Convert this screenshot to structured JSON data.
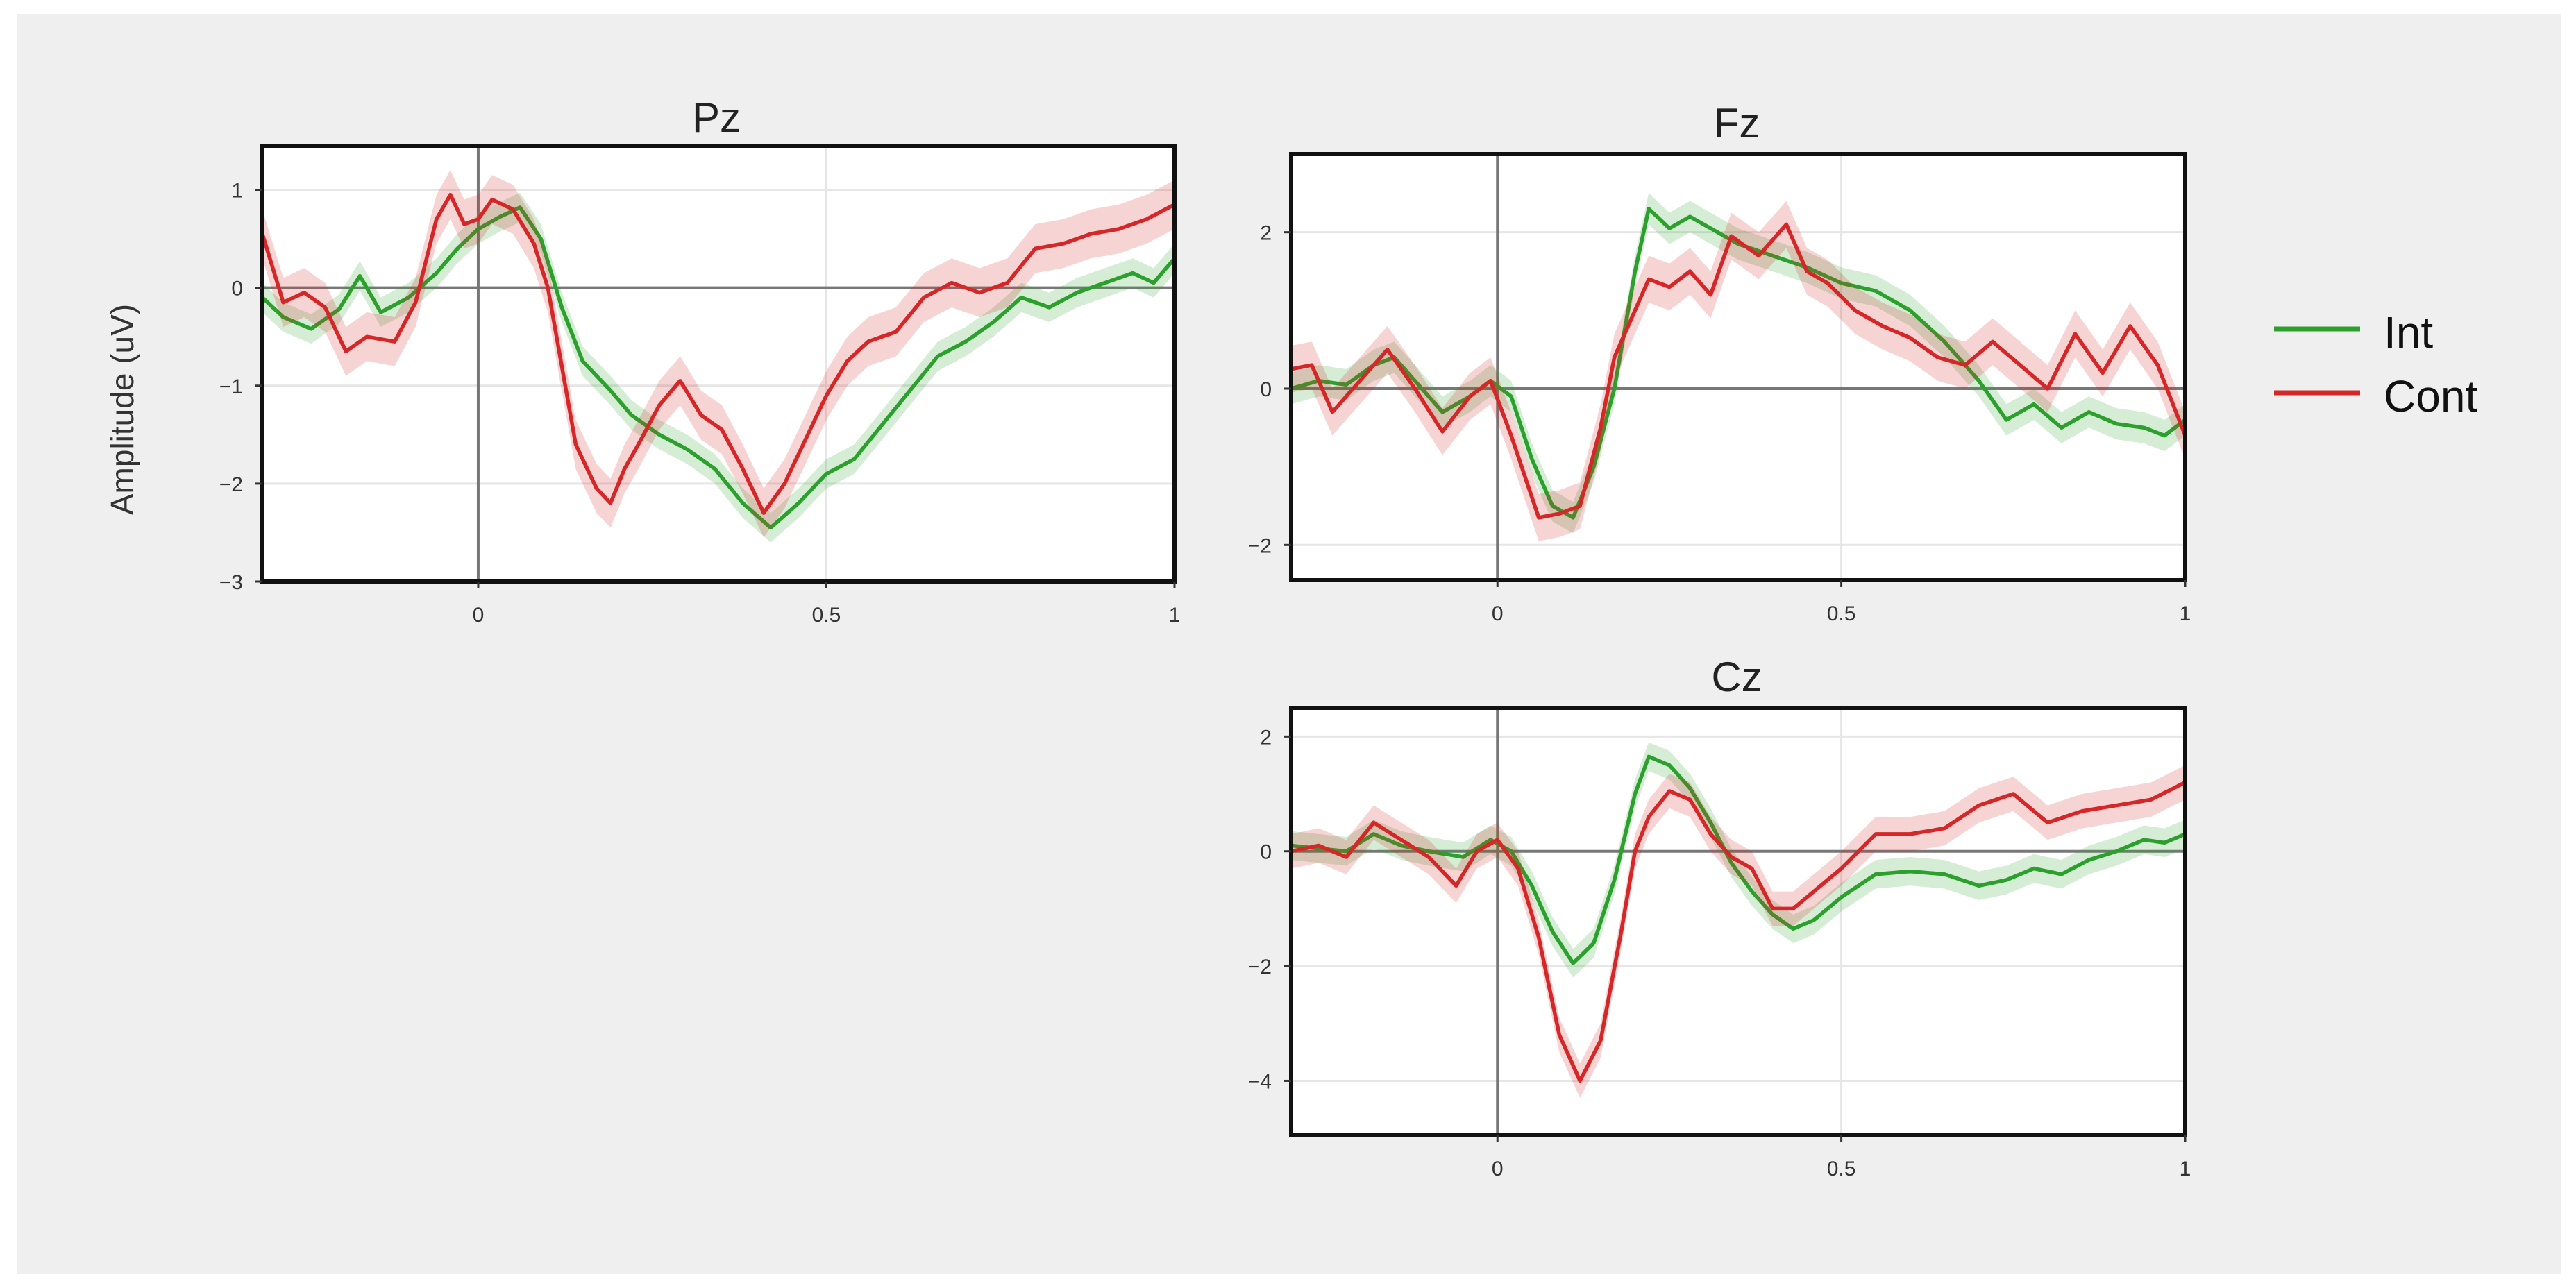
{
  "figure": {
    "ylabel": "Amplitude (uV)",
    "legend": {
      "placement": "right",
      "items": [
        {
          "name": "Int",
          "color": "#2ca02c"
        },
        {
          "name": "Cont",
          "color": "#d62728"
        }
      ]
    }
  },
  "chart_data": [
    {
      "type": "line",
      "title": "Pz",
      "ylabel": "Amplitude (uV)",
      "xlim": [
        -0.31,
        1.0
      ],
      "ylim": [
        -3.0,
        1.45
      ],
      "xticks": [
        0,
        0.5,
        1
      ],
      "xtick_labels": [
        "0",
        "0.5",
        "1"
      ],
      "yticks": [
        -3,
        -2,
        -1,
        0,
        1
      ],
      "ytick_labels": [
        "−3",
        "−2",
        "−1",
        "0",
        "1"
      ],
      "grid": true,
      "series": [
        {
          "name": "Int",
          "color": "#2ca02c",
          "band": 0.15,
          "points": [
            [
              -0.31,
              -0.1
            ],
            [
              -0.28,
              -0.3
            ],
            [
              -0.24,
              -0.42
            ],
            [
              -0.2,
              -0.22
            ],
            [
              -0.17,
              0.12
            ],
            [
              -0.14,
              -0.25
            ],
            [
              -0.1,
              -0.1
            ],
            [
              -0.06,
              0.15
            ],
            [
              -0.03,
              0.4
            ],
            [
              0.0,
              0.6
            ],
            [
              0.03,
              0.72
            ],
            [
              0.06,
              0.82
            ],
            [
              0.09,
              0.5
            ],
            [
              0.12,
              -0.2
            ],
            [
              0.15,
              -0.75
            ],
            [
              0.19,
              -1.05
            ],
            [
              0.22,
              -1.3
            ],
            [
              0.26,
              -1.5
            ],
            [
              0.3,
              -1.65
            ],
            [
              0.34,
              -1.85
            ],
            [
              0.38,
              -2.2
            ],
            [
              0.42,
              -2.45
            ],
            [
              0.46,
              -2.2
            ],
            [
              0.5,
              -1.9
            ],
            [
              0.54,
              -1.75
            ],
            [
              0.58,
              -1.4
            ],
            [
              0.62,
              -1.05
            ],
            [
              0.66,
              -0.7
            ],
            [
              0.7,
              -0.55
            ],
            [
              0.74,
              -0.35
            ],
            [
              0.78,
              -0.1
            ],
            [
              0.82,
              -0.2
            ],
            [
              0.86,
              -0.05
            ],
            [
              0.9,
              0.05
            ],
            [
              0.94,
              0.15
            ],
            [
              0.97,
              0.05
            ],
            [
              1.0,
              0.3
            ]
          ]
        },
        {
          "name": "Cont",
          "color": "#d62728",
          "band": 0.25,
          "points": [
            [
              -0.31,
              0.55
            ],
            [
              -0.28,
              -0.15
            ],
            [
              -0.25,
              -0.05
            ],
            [
              -0.22,
              -0.2
            ],
            [
              -0.19,
              -0.65
            ],
            [
              -0.16,
              -0.5
            ],
            [
              -0.12,
              -0.55
            ],
            [
              -0.09,
              -0.15
            ],
            [
              -0.06,
              0.7
            ],
            [
              -0.04,
              0.95
            ],
            [
              -0.02,
              0.65
            ],
            [
              0.0,
              0.7
            ],
            [
              0.02,
              0.9
            ],
            [
              0.05,
              0.8
            ],
            [
              0.08,
              0.45
            ],
            [
              0.1,
              0.0
            ],
            [
              0.12,
              -0.8
            ],
            [
              0.14,
              -1.6
            ],
            [
              0.17,
              -2.05
            ],
            [
              0.19,
              -2.2
            ],
            [
              0.21,
              -1.85
            ],
            [
              0.23,
              -1.6
            ],
            [
              0.26,
              -1.2
            ],
            [
              0.29,
              -0.95
            ],
            [
              0.32,
              -1.3
            ],
            [
              0.35,
              -1.45
            ],
            [
              0.38,
              -1.85
            ],
            [
              0.41,
              -2.3
            ],
            [
              0.44,
              -2.0
            ],
            [
              0.47,
              -1.55
            ],
            [
              0.5,
              -1.1
            ],
            [
              0.53,
              -0.75
            ],
            [
              0.56,
              -0.55
            ],
            [
              0.6,
              -0.45
            ],
            [
              0.64,
              -0.1
            ],
            [
              0.68,
              0.05
            ],
            [
              0.72,
              -0.05
            ],
            [
              0.76,
              0.05
            ],
            [
              0.8,
              0.4
            ],
            [
              0.84,
              0.45
            ],
            [
              0.88,
              0.55
            ],
            [
              0.92,
              0.6
            ],
            [
              0.96,
              0.7
            ],
            [
              1.0,
              0.85
            ]
          ]
        }
      ]
    },
    {
      "type": "line",
      "title": "Fz",
      "ylabel": "",
      "xlim": [
        -0.3,
        1.0
      ],
      "ylim": [
        -2.45,
        3.0
      ],
      "xticks": [
        0,
        0.5,
        1
      ],
      "xtick_labels": [
        "0",
        "0.5",
        "1"
      ],
      "yticks": [
        -2,
        0,
        2
      ],
      "ytick_labels": [
        "−2",
        "0",
        "2"
      ],
      "grid": true,
      "series": [
        {
          "name": "Int",
          "color": "#2ca02c",
          "band": 0.2,
          "points": [
            [
              -0.3,
              0.0
            ],
            [
              -0.26,
              0.1
            ],
            [
              -0.22,
              0.05
            ],
            [
              -0.18,
              0.3
            ],
            [
              -0.15,
              0.4
            ],
            [
              -0.12,
              0.1
            ],
            [
              -0.08,
              -0.3
            ],
            [
              -0.04,
              -0.1
            ],
            [
              -0.01,
              0.1
            ],
            [
              0.02,
              -0.1
            ],
            [
              0.05,
              -0.9
            ],
            [
              0.08,
              -1.5
            ],
            [
              0.11,
              -1.65
            ],
            [
              0.14,
              -1.0
            ],
            [
              0.17,
              0.0
            ],
            [
              0.2,
              1.5
            ],
            [
              0.22,
              2.3
            ],
            [
              0.25,
              2.05
            ],
            [
              0.28,
              2.2
            ],
            [
              0.31,
              2.05
            ],
            [
              0.35,
              1.85
            ],
            [
              0.4,
              1.7
            ],
            [
              0.45,
              1.55
            ],
            [
              0.5,
              1.35
            ],
            [
              0.55,
              1.25
            ],
            [
              0.6,
              1.0
            ],
            [
              0.65,
              0.6
            ],
            [
              0.7,
              0.1
            ],
            [
              0.74,
              -0.4
            ],
            [
              0.78,
              -0.2
            ],
            [
              0.82,
              -0.5
            ],
            [
              0.86,
              -0.3
            ],
            [
              0.9,
              -0.45
            ],
            [
              0.94,
              -0.5
            ],
            [
              0.97,
              -0.6
            ],
            [
              1.0,
              -0.4
            ]
          ]
        },
        {
          "name": "Cont",
          "color": "#d62728",
          "band": 0.3,
          "points": [
            [
              -0.3,
              0.25
            ],
            [
              -0.27,
              0.3
            ],
            [
              -0.24,
              -0.3
            ],
            [
              -0.2,
              0.1
            ],
            [
              -0.16,
              0.5
            ],
            [
              -0.12,
              0.0
            ],
            [
              -0.08,
              -0.55
            ],
            [
              -0.04,
              -0.1
            ],
            [
              -0.01,
              0.1
            ],
            [
              0.02,
              -0.6
            ],
            [
              0.06,
              -1.65
            ],
            [
              0.09,
              -1.6
            ],
            [
              0.12,
              -1.5
            ],
            [
              0.15,
              -0.5
            ],
            [
              0.17,
              0.4
            ],
            [
              0.2,
              1.0
            ],
            [
              0.22,
              1.4
            ],
            [
              0.25,
              1.3
            ],
            [
              0.28,
              1.5
            ],
            [
              0.31,
              1.2
            ],
            [
              0.34,
              1.95
            ],
            [
              0.38,
              1.7
            ],
            [
              0.42,
              2.1
            ],
            [
              0.45,
              1.5
            ],
            [
              0.48,
              1.35
            ],
            [
              0.52,
              1.0
            ],
            [
              0.56,
              0.8
            ],
            [
              0.6,
              0.65
            ],
            [
              0.64,
              0.4
            ],
            [
              0.68,
              0.3
            ],
            [
              0.72,
              0.6
            ],
            [
              0.76,
              0.3
            ],
            [
              0.8,
              0.0
            ],
            [
              0.84,
              0.7
            ],
            [
              0.88,
              0.2
            ],
            [
              0.92,
              0.8
            ],
            [
              0.96,
              0.3
            ],
            [
              1.0,
              -0.6
            ]
          ]
        }
      ]
    },
    {
      "type": "line",
      "title": "Cz",
      "ylabel": "",
      "xlim": [
        -0.3,
        1.0
      ],
      "ylim": [
        -4.95,
        2.5
      ],
      "xticks": [
        0,
        0.5,
        1
      ],
      "xtick_labels": [
        "0",
        "0.5",
        "1"
      ],
      "yticks": [
        -4,
        -2,
        0,
        2
      ],
      "ytick_labels": [
        "−4",
        "−2",
        "0",
        "2"
      ],
      "grid": true,
      "series": [
        {
          "name": "Int",
          "color": "#2ca02c",
          "band": 0.25,
          "points": [
            [
              -0.3,
              0.1
            ],
            [
              -0.26,
              0.05
            ],
            [
              -0.22,
              0.0
            ],
            [
              -0.18,
              0.3
            ],
            [
              -0.14,
              0.1
            ],
            [
              -0.1,
              0.0
            ],
            [
              -0.05,
              -0.1
            ],
            [
              -0.01,
              0.2
            ],
            [
              0.02,
              0.0
            ],
            [
              0.05,
              -0.6
            ],
            [
              0.08,
              -1.4
            ],
            [
              0.11,
              -1.95
            ],
            [
              0.14,
              -1.6
            ],
            [
              0.17,
              -0.5
            ],
            [
              0.2,
              1.0
            ],
            [
              0.22,
              1.65
            ],
            [
              0.25,
              1.5
            ],
            [
              0.28,
              1.1
            ],
            [
              0.31,
              0.5
            ],
            [
              0.34,
              -0.2
            ],
            [
              0.37,
              -0.7
            ],
            [
              0.4,
              -1.1
            ],
            [
              0.43,
              -1.35
            ],
            [
              0.46,
              -1.2
            ],
            [
              0.5,
              -0.8
            ],
            [
              0.55,
              -0.4
            ],
            [
              0.6,
              -0.35
            ],
            [
              0.65,
              -0.4
            ],
            [
              0.7,
              -0.6
            ],
            [
              0.74,
              -0.5
            ],
            [
              0.78,
              -0.3
            ],
            [
              0.82,
              -0.4
            ],
            [
              0.86,
              -0.15
            ],
            [
              0.9,
              0.0
            ],
            [
              0.94,
              0.2
            ],
            [
              0.97,
              0.15
            ],
            [
              1.0,
              0.3
            ]
          ]
        },
        {
          "name": "Cont",
          "color": "#d62728",
          "band": 0.3,
          "points": [
            [
              -0.3,
              0.0
            ],
            [
              -0.26,
              0.1
            ],
            [
              -0.22,
              -0.1
            ],
            [
              -0.18,
              0.5
            ],
            [
              -0.14,
              0.2
            ],
            [
              -0.1,
              -0.1
            ],
            [
              -0.06,
              -0.6
            ],
            [
              -0.03,
              0.0
            ],
            [
              0.0,
              0.2
            ],
            [
              0.03,
              -0.3
            ],
            [
              0.06,
              -1.5
            ],
            [
              0.09,
              -3.2
            ],
            [
              0.12,
              -4.0
            ],
            [
              0.15,
              -3.3
            ],
            [
              0.18,
              -1.4
            ],
            [
              0.2,
              0.0
            ],
            [
              0.22,
              0.6
            ],
            [
              0.25,
              1.05
            ],
            [
              0.28,
              0.9
            ],
            [
              0.31,
              0.3
            ],
            [
              0.34,
              -0.1
            ],
            [
              0.37,
              -0.3
            ],
            [
              0.4,
              -1.0
            ],
            [
              0.43,
              -1.0
            ],
            [
              0.46,
              -0.7
            ],
            [
              0.5,
              -0.3
            ],
            [
              0.55,
              0.3
            ],
            [
              0.6,
              0.3
            ],
            [
              0.65,
              0.4
            ],
            [
              0.7,
              0.8
            ],
            [
              0.75,
              1.0
            ],
            [
              0.8,
              0.5
            ],
            [
              0.85,
              0.7
            ],
            [
              0.9,
              0.8
            ],
            [
              0.95,
              0.9
            ],
            [
              1.0,
              1.2
            ]
          ]
        }
      ]
    }
  ]
}
